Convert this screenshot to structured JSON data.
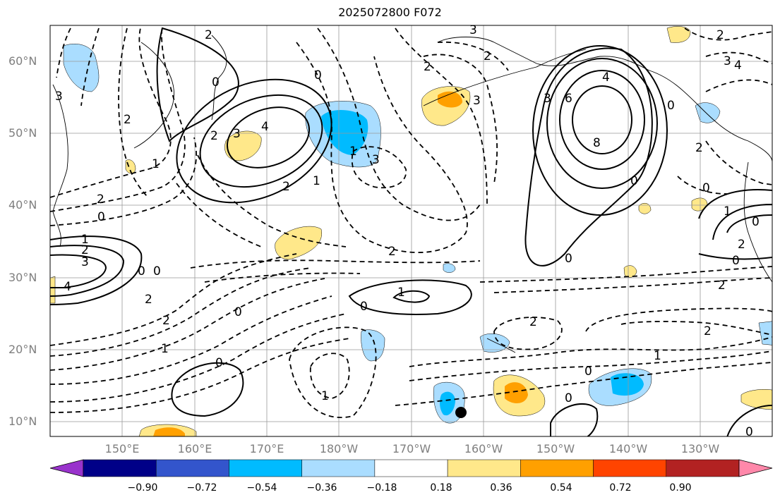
{
  "title": "2025072800 F072",
  "lat_labels": [
    "60°N",
    "50°N",
    "40°N",
    "30°N",
    "20°N",
    "10°N"
  ],
  "lon_labels": [
    "150°E",
    "160°E",
    "170°E",
    "180°W",
    "170°W",
    "160°W",
    "150°W",
    "140°W",
    "130°W"
  ],
  "colorbar": {
    "tick_labels": [
      "−0.90",
      "−0.72",
      "−0.54",
      "−0.36",
      "−0.18",
      "0.18",
      "0.36",
      "0.54",
      "0.72",
      "0.90"
    ],
    "colors": [
      "#9933cc",
      "#000088",
      "#3355cc",
      "#00bbff",
      "#aaddff",
      "#ffffff",
      "#ffe88a",
      "#ffa000",
      "#ff4400",
      "#b22222",
      "#ff88aa"
    ]
  },
  "contour_labels": [
    "2",
    "2",
    "3",
    "2",
    "3",
    "4",
    "0",
    "2",
    "3",
    "2",
    "0",
    "0",
    "0",
    "3",
    "6",
    "4",
    "8",
    "3",
    "2",
    "0",
    "0",
    "1",
    "2",
    "3",
    "4",
    "0",
    "0",
    "2",
    "2",
    "2",
    "1",
    "0",
    "0",
    "1",
    "2",
    "2",
    "2",
    "1",
    "2",
    "2",
    "0",
    "1",
    "0",
    "0",
    "0",
    "1",
    "3",
    "1",
    "2",
    "2",
    "0",
    "0",
    "1",
    "4",
    "3",
    "1",
    "0"
  ]
}
